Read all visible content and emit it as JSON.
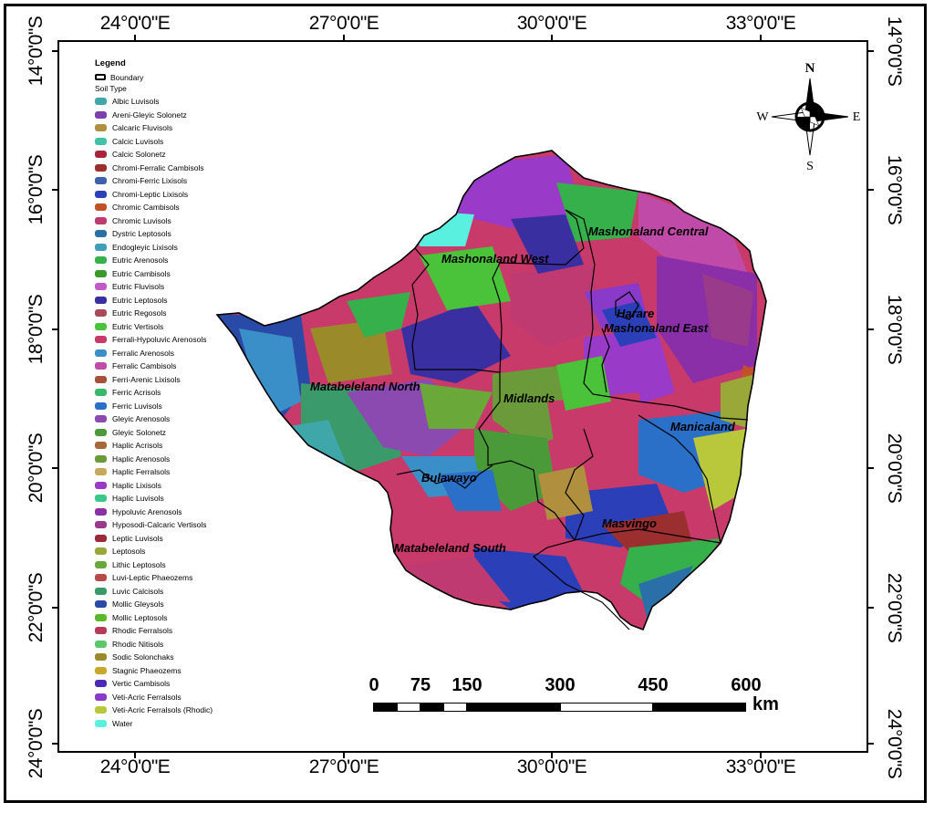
{
  "coordinates": {
    "top": [
      "24°0'0\"E",
      "27°0'0\"E",
      "30°0'0\"E",
      "33°0'0\"E"
    ],
    "bottom": [
      "24°0'0\"E",
      "27°0'0\"E",
      "30°0'0\"E",
      "33°0'0\"E"
    ],
    "left": [
      "14°0'0\"S",
      "16°0'0\"S",
      "18°0'0\"S",
      "20°0'0\"S",
      "22°0'0\"S",
      "24°0'0\"S"
    ],
    "right": [
      "14°0'0\"S",
      "16°0'0\"S",
      "18°0'0\"S",
      "20°0'0\"S",
      "22°0'0\"S",
      "24°0'0\"S"
    ]
  },
  "legend": {
    "title": "Legend",
    "boundary_label": "Boundary",
    "subtitle": "Soil Type",
    "items": [
      {
        "label": "Albic Luvisols",
        "color": "#3fa6a9"
      },
      {
        "label": "Areni-Gleyic Solonetz",
        "color": "#7b3fb0"
      },
      {
        "label": "Calcaric Fluvisols",
        "color": "#b0903f"
      },
      {
        "label": "Calcic Luvisols",
        "color": "#3fc2a6"
      },
      {
        "label": "Calcic Solonetz",
        "color": "#a8243b"
      },
      {
        "label": "Chromi-Ferralic Cambisols",
        "color": "#9b2e2e"
      },
      {
        "label": "Chromi-Ferric Lixisols",
        "color": "#3f5fb0"
      },
      {
        "label": "Chromi-Leptic Lixisols",
        "color": "#2a3fb8"
      },
      {
        "label": "Chromic Cambisols",
        "color": "#c4502a"
      },
      {
        "label": "Chromic Luvisols",
        "color": "#c03a72"
      },
      {
        "label": "Dystric Leptosols",
        "color": "#2a6fa8"
      },
      {
        "label": "Endogleyic Lixisols",
        "color": "#3f9fb8"
      },
      {
        "label": "Eutric Arenosols",
        "color": "#36b04a"
      },
      {
        "label": "Eutric Cambisols",
        "color": "#3a9a2a"
      },
      {
        "label": "Eutric Fluvisols",
        "color": "#c05ac8"
      },
      {
        "label": "Eutric Leptosols",
        "color": "#3a2fa0"
      },
      {
        "label": "Eutric Regosols",
        "color": "#a84a5a"
      },
      {
        "label": "Eutric Vertisols",
        "color": "#4ac23a"
      },
      {
        "label": "Ferrali-Hypoluvic Arenosols",
        "color": "#c83a6a"
      },
      {
        "label": "Ferralic Arenosols",
        "color": "#3a8fc8"
      },
      {
        "label": "Ferralic Cambisols",
        "color": "#c04aa8"
      },
      {
        "label": "Ferri-Arenic Lixisols",
        "color": "#a8503a"
      },
      {
        "label": "Ferric Acrisols",
        "color": "#3ab86a"
      },
      {
        "label": "Ferric Luvisols",
        "color": "#2a6fc8"
      },
      {
        "label": "Gleyic Arenosols",
        "color": "#8a4ab0"
      },
      {
        "label": "Gleyic Solonetz",
        "color": "#4a9a3a"
      },
      {
        "label": "Haplic Acrisols",
        "color": "#a8683a"
      },
      {
        "label": "Haplic Arenosols",
        "color": "#6a9a3a"
      },
      {
        "label": "Haplic Ferralsols",
        "color": "#c8a85a"
      },
      {
        "label": "Haplic Lixisols",
        "color": "#9a3ac8"
      },
      {
        "label": "Haplic Luvisols",
        "color": "#3ac88a"
      },
      {
        "label": "Hypoluvic Arenosols",
        "color": "#8a2fa8"
      },
      {
        "label": "Hyposodi-Calcaric Vertisols",
        "color": "#9a3a8a"
      },
      {
        "label": "Leptic Luvisols",
        "color": "#9a2a3a"
      },
      {
        "label": "Leptosols",
        "color": "#9aa83a"
      },
      {
        "label": "Lithic Leptosols",
        "color": "#6aa83a"
      },
      {
        "label": "Luvi-Leptic Phaeozems",
        "color": "#b84a4a"
      },
      {
        "label": "Luvic Calcisols",
        "color": "#3a9a6a"
      },
      {
        "label": "Mollic Gleysols",
        "color": "#2a4aa8"
      },
      {
        "label": "Mollic Leptosols",
        "color": "#5ab82a"
      },
      {
        "label": "Rhodic Ferralsols",
        "color": "#b83a5a"
      },
      {
        "label": "Rhodic Nitisols",
        "color": "#5ac86a"
      },
      {
        "label": "Sodic Solonchaks",
        "color": "#9a8a2a"
      },
      {
        "label": "Stagnic Phaeozems",
        "color": "#c8a82a"
      },
      {
        "label": "Vertic Cambisols",
        "color": "#4a2ab8"
      },
      {
        "label": "Veti-Acric Ferralsols",
        "color": "#8a3ac8"
      },
      {
        "label": "Veti-Acric Ferralsols (Rhodic)",
        "color": "#b8c83a"
      },
      {
        "label": "Water",
        "color": "#5af0e0"
      }
    ]
  },
  "regions": [
    "Mashonaland Central",
    "Mashonaland West",
    "Harare",
    "Mashonaland East",
    "Matabeleland North",
    "Midlands",
    "Manicaland",
    "Bulawayo",
    "Masvingo",
    "Matabeleland South"
  ],
  "scale_bar": {
    "labels": [
      "0",
      "75",
      "150",
      "300",
      "450",
      "600"
    ],
    "unit": "km"
  },
  "compass": {
    "north": "N",
    "south": "S",
    "east": "E",
    "west": "W"
  }
}
